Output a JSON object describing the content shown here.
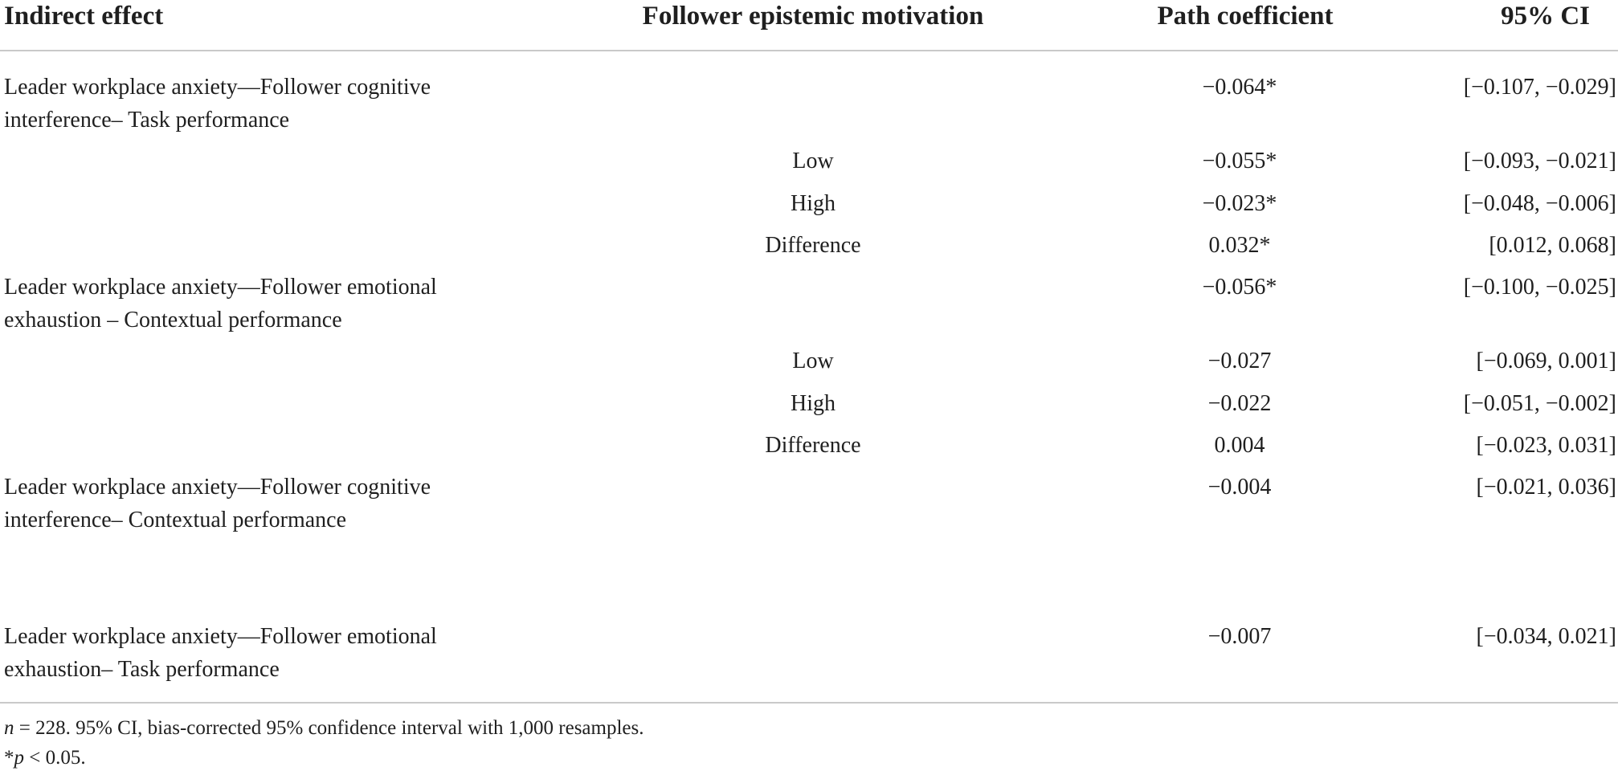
{
  "headers": {
    "indirect_effect": "Indirect effect",
    "motivation": "Follower epistemic motivation",
    "path": "Path coefficient",
    "ci": "95% CI"
  },
  "rows": [
    {
      "effect_line1": "Leader workplace anxiety—Follower cognitive",
      "effect_line2": "interference– Task performance",
      "motivation": "",
      "path": "−0.064*",
      "ci": "[−0.107, −0.029]"
    },
    {
      "effect_line1": "",
      "effect_line2": "",
      "motivation": "Low",
      "path": "−0.055*",
      "ci": "[−0.093, −0.021]"
    },
    {
      "effect_line1": "",
      "effect_line2": "",
      "motivation": "High",
      "path": "−0.023*",
      "ci": "[−0.048, −0.006]"
    },
    {
      "effect_line1": "",
      "effect_line2": "",
      "motivation": "Difference",
      "path": "0.032*",
      "ci": "[0.012, 0.068]"
    },
    {
      "effect_line1": "Leader workplace anxiety—Follower emotional",
      "effect_line2": "exhaustion – Contextual performance",
      "motivation": "",
      "path": "−0.056*",
      "ci": "[−0.100, −0.025]"
    },
    {
      "effect_line1": "",
      "effect_line2": "",
      "motivation": "Low",
      "path": "−0.027",
      "ci": "[−0.069, 0.001]"
    },
    {
      "effect_line1": "",
      "effect_line2": "",
      "motivation": "High",
      "path": "−0.022",
      "ci": "[−0.051, −0.002]"
    },
    {
      "effect_line1": "",
      "effect_line2": "",
      "motivation": "Difference",
      "path": "0.004",
      "ci": "[−0.023, 0.031]"
    },
    {
      "effect_line1": "Leader workplace anxiety—Follower cognitive",
      "effect_line2": "interference– Contextual performance",
      "motivation": "",
      "path": "−0.004",
      "ci": "[−0.021, 0.036]"
    },
    {
      "effect_line1": "Leader workplace anxiety—Follower emotional",
      "effect_line2": "exhaustion– Task performance",
      "motivation": "",
      "path": "−0.007",
      "ci": "[−0.034, 0.021]"
    }
  ],
  "footnotes": {
    "n_symbol": "n",
    "note1_rest": " = 228. 95% CI, bias-corrected 95% confidence interval with 1,000 resamples.",
    "star": "*",
    "p_symbol": "p",
    "note2_rest": " < 0.05."
  }
}
